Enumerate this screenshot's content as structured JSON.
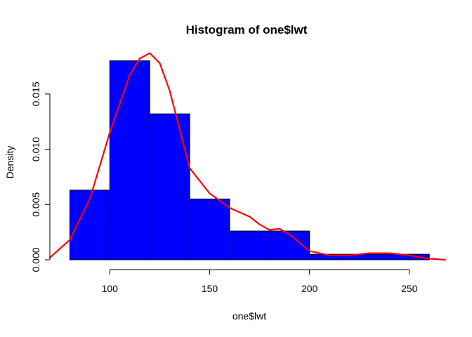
{
  "chart_data": {
    "type": "bar",
    "title": "Histogram of one$lwt",
    "xlabel": "one$lwt",
    "ylabel": "Density",
    "xlim": [
      70,
      268
    ],
    "ylim": [
      0,
      0.0195
    ],
    "x_ticks": [
      100,
      150,
      200,
      250
    ],
    "y_ticks": [
      0,
      0.005,
      0.01,
      0.015
    ],
    "x_tick_labels": [
      "100",
      "150",
      "200",
      "250"
    ],
    "y_tick_labels": [
      "0.000",
      "0.005",
      "0.010",
      "0.015"
    ],
    "bins": [
      {
        "from": 80,
        "to": 100,
        "density": 0.0063
      },
      {
        "from": 100,
        "to": 120,
        "density": 0.018
      },
      {
        "from": 120,
        "to": 140,
        "density": 0.0132
      },
      {
        "from": 140,
        "to": 160,
        "density": 0.0055
      },
      {
        "from": 160,
        "to": 180,
        "density": 0.0026
      },
      {
        "from": 180,
        "to": 200,
        "density": 0.0026
      },
      {
        "from": 200,
        "to": 220,
        "density": 0.0005
      },
      {
        "from": 220,
        "to": 240,
        "density": 0.0005
      },
      {
        "from": 240,
        "to": 260,
        "density": 0.0005
      }
    ],
    "density_curve": {
      "x": [
        70,
        80,
        90,
        100,
        110,
        115,
        120,
        125,
        130,
        140,
        150,
        160,
        170,
        175,
        180,
        185,
        190,
        200,
        210,
        220,
        230,
        240,
        250,
        260,
        268
      ],
      "y": [
        0.0002,
        0.0018,
        0.0055,
        0.0115,
        0.0167,
        0.0182,
        0.0187,
        0.0178,
        0.0153,
        0.0083,
        0.006,
        0.0047,
        0.0039,
        0.0032,
        0.0027,
        0.0028,
        0.0023,
        0.0008,
        0.0004,
        0.0004,
        0.0006,
        0.0006,
        0.0004,
        0.0001,
        0.0
      ]
    },
    "colors": {
      "bar_fill": "#0000ff",
      "bar_stroke": "#000000",
      "curve": "#ff0000"
    },
    "grid": false
  }
}
